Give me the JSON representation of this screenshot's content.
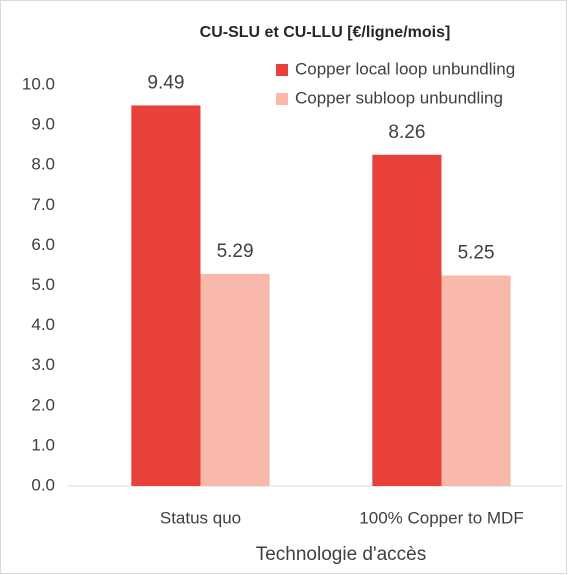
{
  "chart_data": {
    "type": "bar",
    "title": "CU-SLU et CU-LLU [€/ligne/mois]",
    "x_label": "Technologie d'accès",
    "categories": [
      "Status quo",
      "100% Copper to MDF"
    ],
    "series": [
      {
        "name": "Copper local loop unbundling",
        "color": "#e8413a",
        "values": [
          9.49,
          8.26
        ]
      },
      {
        "name": "Copper subloop unbundling",
        "color": "#f8b9ab",
        "values": [
          5.29,
          5.25
        ]
      }
    ],
    "ylim": [
      0,
      10
    ],
    "yticks": [
      {
        "value": 0,
        "label": "0.0"
      },
      {
        "value": 1,
        "label": "1.0"
      },
      {
        "value": 2,
        "label": "2.0"
      },
      {
        "value": 3,
        "label": "3.0"
      },
      {
        "value": 4,
        "label": "4.0"
      },
      {
        "value": 5,
        "label": "5.0"
      },
      {
        "value": 6,
        "label": "6.0"
      },
      {
        "value": 7,
        "label": "7.0"
      },
      {
        "value": 8,
        "label": "8.0"
      },
      {
        "value": 9,
        "label": "9.0"
      },
      {
        "value": 10,
        "label": "10.0"
      }
    ],
    "legend": "top-right",
    "grid": false
  }
}
